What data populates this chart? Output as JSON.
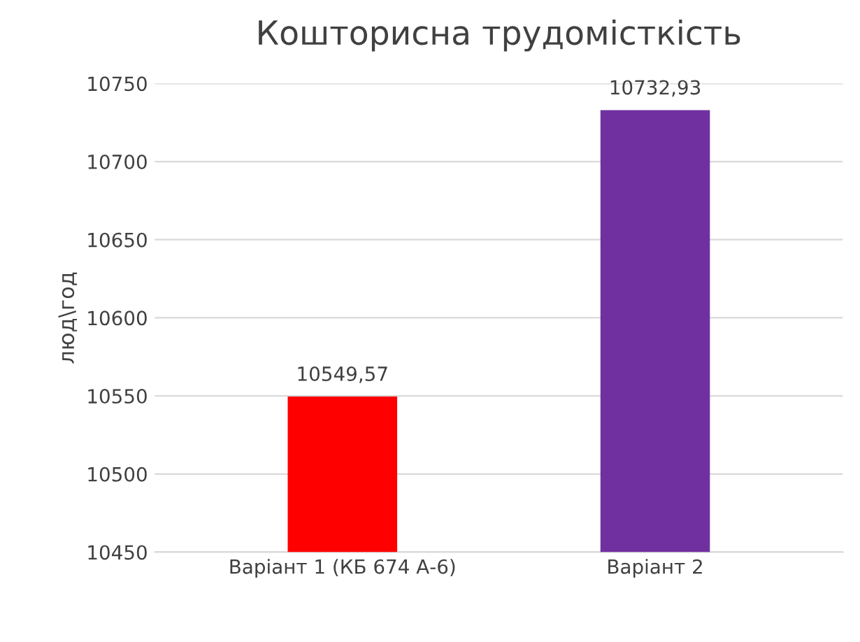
{
  "chart_data": {
    "type": "bar",
    "title": "Кошторисна трудомісткість",
    "ylabel": "люд\\год",
    "categories": [
      "Варіант 1 (КБ 674 А-6)",
      "Варіант 2"
    ],
    "values": [
      10549.57,
      10732.93
    ],
    "value_labels": [
      "10549,57",
      "10732,93"
    ],
    "colors": [
      "#ff0000",
      "#7030a0"
    ],
    "ylim": [
      10450,
      10750
    ],
    "yticks": [
      10450,
      10500,
      10550,
      10600,
      10650,
      10700,
      10750
    ],
    "grid": "y"
  }
}
